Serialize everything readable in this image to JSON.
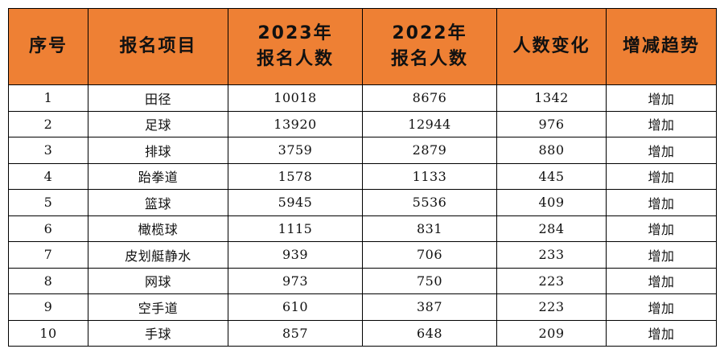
{
  "table": {
    "headers": [
      [
        "序号"
      ],
      [
        "报名项目"
      ],
      [
        "2023年",
        "报名人数"
      ],
      [
        "2022年",
        "报名人数"
      ],
      [
        "人数变化"
      ],
      [
        "增减趋势"
      ]
    ],
    "rows": [
      [
        "1",
        "田径",
        "10018",
        "8676",
        "1342",
        "增加"
      ],
      [
        "2",
        "足球",
        "13920",
        "12944",
        "976",
        "增加"
      ],
      [
        "3",
        "排球",
        "3759",
        "2879",
        "880",
        "增加"
      ],
      [
        "4",
        "跆拳道",
        "1578",
        "1133",
        "445",
        "增加"
      ],
      [
        "5",
        "篮球",
        "5945",
        "5536",
        "409",
        "增加"
      ],
      [
        "6",
        "橄榄球",
        "1115",
        "831",
        "284",
        "增加"
      ],
      [
        "7",
        "皮划艇静水",
        "939",
        "706",
        "233",
        "增加"
      ],
      [
        "8",
        "网球",
        "973",
        "750",
        "223",
        "增加"
      ],
      [
        "9",
        "空手道",
        "610",
        "387",
        "223",
        "增加"
      ],
      [
        "10",
        "手球",
        "857",
        "648",
        "209",
        "增加"
      ]
    ]
  },
  "colors": {
    "header_bg": "#ee8034",
    "border": "#000000"
  }
}
